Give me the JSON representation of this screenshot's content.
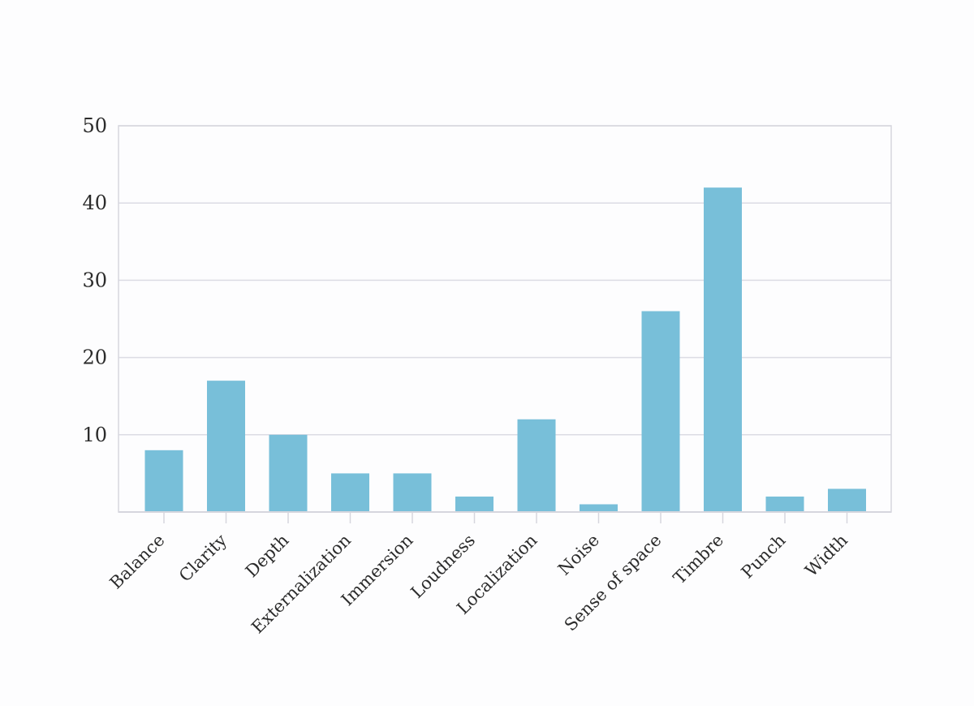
{
  "chart_data": {
    "type": "bar",
    "title": "",
    "xlabel": "",
    "ylabel": "",
    "categories": [
      "Balance",
      "Clarity",
      "Depth",
      "Externalization",
      "Immersion",
      "Loudness",
      "Localization",
      "Noise",
      "Sense of space",
      "Timbre",
      "Punch",
      "Width"
    ],
    "values": [
      8,
      17,
      10,
      5,
      5,
      2,
      12,
      1,
      26,
      42,
      2,
      3
    ],
    "ylim": [
      0,
      50
    ],
    "yticks": [
      10,
      20,
      30,
      40,
      50
    ],
    "grid": true,
    "legend": "none",
    "colors": {
      "bar": "#78bfd9",
      "grid": "#dcdce4",
      "axis": "#d6d6de",
      "text": "#2b2b2b"
    }
  }
}
